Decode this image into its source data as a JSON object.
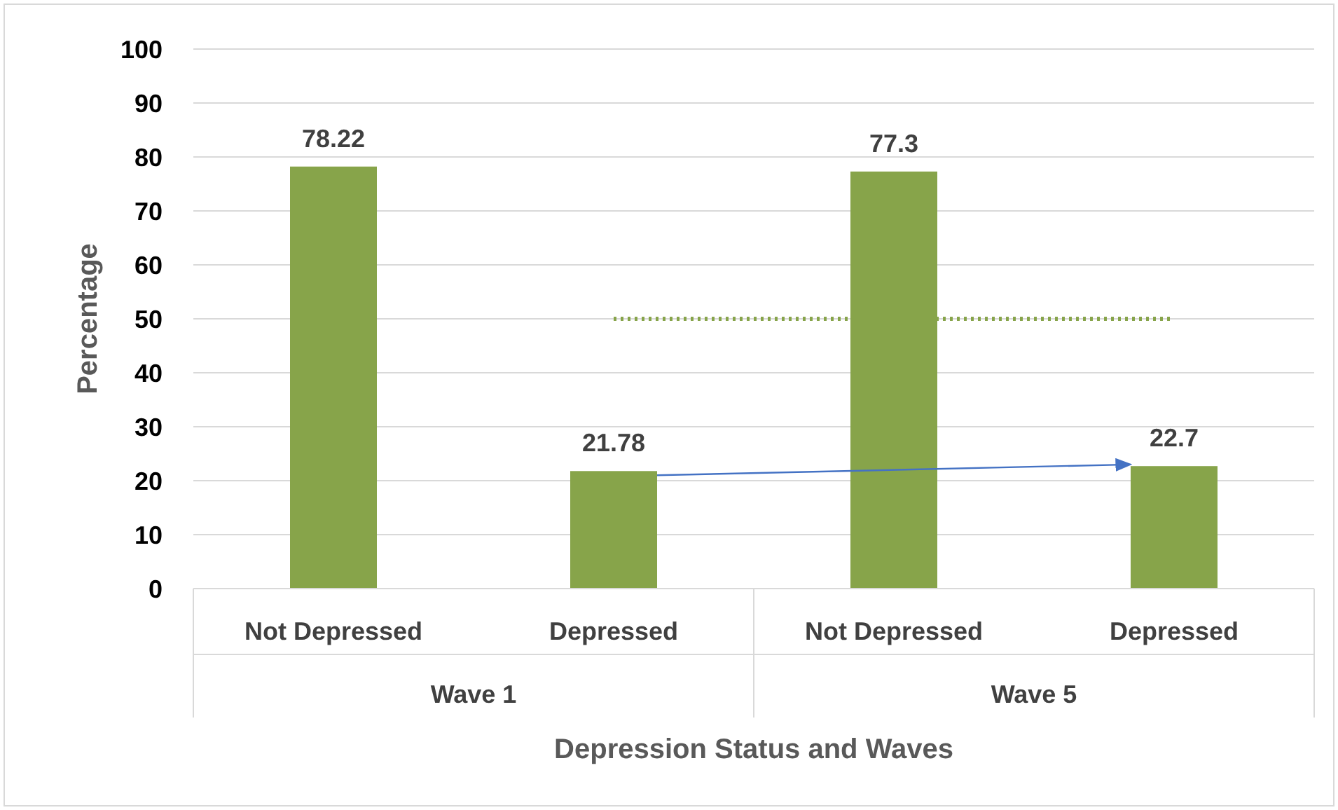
{
  "chart_data": {
    "type": "bar",
    "xlabel": "Depression Status and Waves",
    "ylabel": "Percentage",
    "categories": [
      "Not Depressed",
      "Depressed",
      "Not Depressed",
      "Depressed"
    ],
    "series": [
      {
        "color": "#87a44a",
        "values": [
          78.22,
          21.78,
          77.3,
          22.7
        ],
        "data_labels": true
      },
      {
        "type": "line",
        "color": "#87a44a",
        "values": [
          null,
          50,
          50,
          50
        ],
        "line_style": "dotted",
        "marker": "none"
      }
    ],
    "annotations": [
      "Wave 1",
      "Wave 5"
    ],
    "ylim": [
      0,
      100
    ],
    "yticks": [
      0,
      10,
      20,
      30,
      40,
      50,
      60,
      70,
      80,
      90,
      100
    ],
    "grid": "y"
  }
}
